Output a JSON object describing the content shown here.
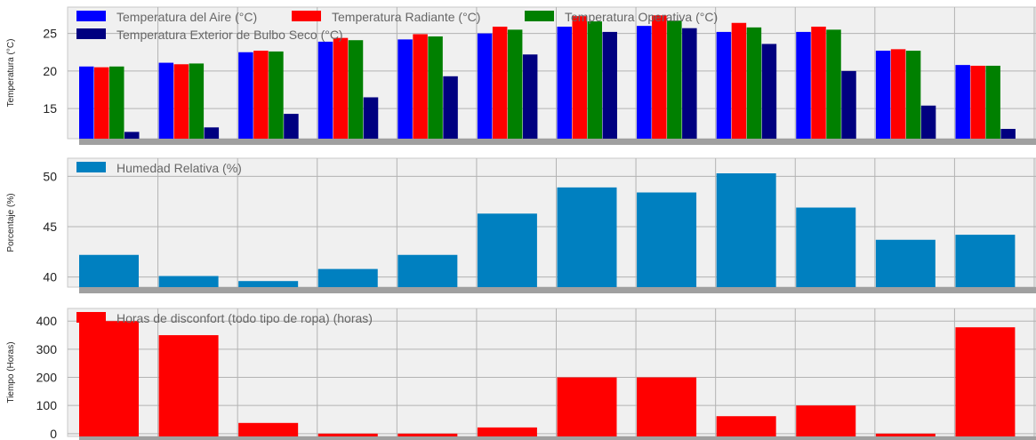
{
  "chart_data": [
    {
      "type": "bar",
      "ylabel": "Temperatura (°C)",
      "ylim": [
        11,
        28.5
      ],
      "yticks": [
        15,
        20,
        25
      ],
      "grid": true,
      "legend_position": "top-left",
      "series": [
        {
          "name": "Temperatura del Aire (°C)",
          "color": "#0000ff",
          "values": [
            20.6,
            21.1,
            22.5,
            23.9,
            24.2,
            25.0,
            25.9,
            26.0,
            25.2,
            25.2,
            22.7,
            20.8
          ]
        },
        {
          "name": "Temperatura Radiante (°C)",
          "color": "#ff0000",
          "values": [
            20.5,
            20.9,
            22.7,
            24.4,
            24.9,
            25.9,
            27.3,
            27.4,
            26.4,
            25.9,
            22.9,
            20.7
          ]
        },
        {
          "name": "Temperatura Operativa (°C)",
          "color": "#008000",
          "values": [
            20.6,
            21.0,
            22.6,
            24.1,
            24.6,
            25.5,
            26.6,
            26.7,
            25.8,
            25.5,
            22.7,
            20.7
          ]
        },
        {
          "name": "Temperatura Exterior de Bulbo Seco (°C)",
          "color": "#000080",
          "values": [
            11.9,
            12.5,
            14.3,
            16.5,
            19.3,
            22.2,
            25.2,
            25.7,
            23.6,
            20.0,
            15.4,
            12.3
          ]
        }
      ]
    },
    {
      "type": "bar",
      "ylabel": "Porcentaje (%)",
      "ylim": [
        39.0,
        51.8
      ],
      "yticks": [
        40,
        45,
        50
      ],
      "grid": true,
      "legend_position": "top-left",
      "series": [
        {
          "name": "Humedad Relativa (%)",
          "color": "#0080c0",
          "values": [
            42.2,
            40.1,
            39.6,
            40.8,
            42.2,
            46.3,
            48.9,
            48.4,
            50.3,
            46.9,
            43.7,
            44.2
          ]
        }
      ]
    },
    {
      "type": "bar",
      "ylabel": "Tiempo (Horas)",
      "ylim": [
        -10,
        445
      ],
      "yticks": [
        0,
        100,
        200,
        300,
        400
      ],
      "grid": true,
      "legend_position": "top-left",
      "series": [
        {
          "name": "Horas de disconfort (todo tipo de ropa) (horas)",
          "color": "#ff0000",
          "values": [
            400,
            350,
            38,
            0,
            0,
            22,
            200,
            200,
            62,
            100,
            0,
            378
          ]
        }
      ]
    }
  ]
}
